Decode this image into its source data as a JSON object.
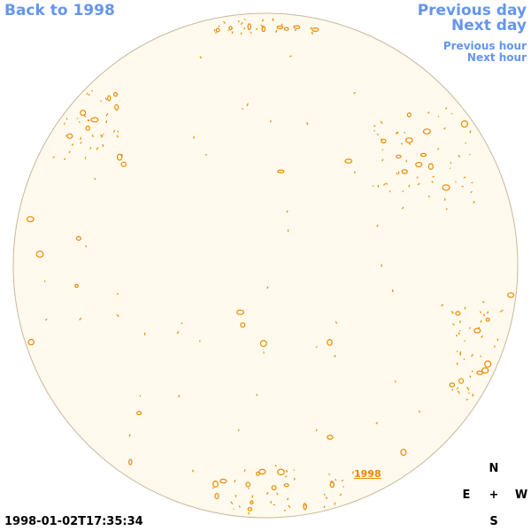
{
  "nav": {
    "back": "Back to 1998",
    "previous_day": "Previous day",
    "next_day": "Next day",
    "previous_hour": "Previous hour",
    "next_hour": "Next hour"
  },
  "compass": {
    "n": "N",
    "e": "E",
    "center": "+",
    "w": "W",
    "s": "S"
  },
  "timestamp": "1998-01-02T17:35:34",
  "disk_label": "1998",
  "colors": {
    "link": "#6495ed",
    "disk_fill": "#fffaed",
    "disk_stroke": "#c8b89a",
    "contour": "#e88a00"
  }
}
